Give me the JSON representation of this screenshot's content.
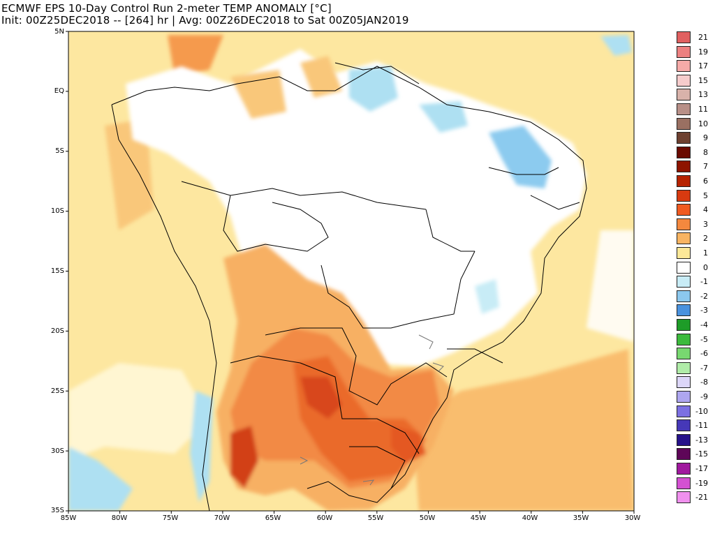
{
  "title": {
    "line1": "ECMWF EPS 10-Day Control Run 2-meter TEMP ANOMALY [°C]",
    "line2": "Init: 00Z25DEC2018 -- [264] hr | Avg: 00Z26DEC2018 to Sat 00Z05JAN2019"
  },
  "map": {
    "lat_labels": [
      "5N",
      "EQ",
      "5S",
      "10S",
      "15S",
      "20S",
      "25S",
      "30S",
      "35S"
    ],
    "lon_labels": [
      "85W",
      "80W",
      "75W",
      "70W",
      "65W",
      "60W",
      "55W",
      "50W",
      "45W",
      "40W",
      "35W",
      "30W"
    ],
    "extent": {
      "lon_min": -85,
      "lon_max": -30,
      "lat_min": -35,
      "lat_max": 5
    },
    "region": "South America"
  },
  "colorbar": {
    "unit": "°C",
    "levels": [
      {
        "label": "21",
        "color": "#e06060"
      },
      {
        "label": "19",
        "color": "#ec8080"
      },
      {
        "label": "17",
        "color": "#f6aaa8"
      },
      {
        "label": "15",
        "color": "#f6cccc"
      },
      {
        "label": "13",
        "color": "#d8b2aa"
      },
      {
        "label": "11",
        "color": "#b89088"
      },
      {
        "label": "10",
        "color": "#9a7062"
      },
      {
        "label": "9",
        "color": "#6e4030"
      },
      {
        "label": "8",
        "color": "#6a0a00"
      },
      {
        "label": "7",
        "color": "#8e1400"
      },
      {
        "label": "6",
        "color": "#b62200"
      },
      {
        "label": "5",
        "color": "#d83a10"
      },
      {
        "label": "4",
        "color": "#f05a20"
      },
      {
        "label": "3",
        "color": "#f4883e"
      },
      {
        "label": "2",
        "color": "#f8b462"
      },
      {
        "label": "1",
        "color": "#fce898"
      },
      {
        "label": "0",
        "color": "#ffffff"
      },
      {
        "label": "-1",
        "color": "#c8ecf6"
      },
      {
        "label": "-2",
        "color": "#8cc8ee"
      },
      {
        "label": "-3",
        "color": "#4a92de"
      },
      {
        "label": "-4",
        "color": "#1e9c28"
      },
      {
        "label": "-5",
        "color": "#3cba3c"
      },
      {
        "label": "-6",
        "color": "#78d870"
      },
      {
        "label": "-7",
        "color": "#b0eca8"
      },
      {
        "label": "-8",
        "color": "#dcd6f8"
      },
      {
        "label": "-9",
        "color": "#aea6f0"
      },
      {
        "label": "-10",
        "color": "#7c70e2"
      },
      {
        "label": "-11",
        "color": "#4638b8"
      },
      {
        "label": "-13",
        "color": "#26128a"
      },
      {
        "label": "-15",
        "color": "#5e0658"
      },
      {
        "label": "-17",
        "color": "#a0189e"
      },
      {
        "label": "-19",
        "color": "#d450d2"
      },
      {
        "label": "-21",
        "color": "#f090ee"
      }
    ]
  }
}
